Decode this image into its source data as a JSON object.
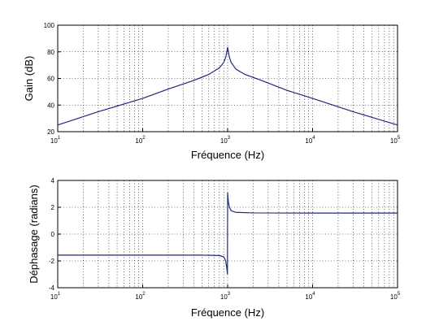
{
  "chart_data": [
    {
      "type": "line",
      "xscale": "log",
      "xlim": [
        10,
        100000
      ],
      "ylim": [
        20,
        100
      ],
      "xlabel": "Fréquence (Hz)",
      "ylabel": "Gain (dB)",
      "yticks": [
        "20",
        "40",
        "60",
        "80",
        "100"
      ],
      "xticks": [
        {
          "base": "10",
          "exp": "1"
        },
        {
          "base": "10",
          "exp": "2"
        },
        {
          "base": "10",
          "exp": "3"
        },
        {
          "base": "10",
          "exp": "4"
        },
        {
          "base": "10",
          "exp": "5"
        }
      ],
      "grid": true,
      "color": "#1f2a7a",
      "series": [
        {
          "x": [
            10,
            30,
            100,
            200,
            400,
            600,
            800,
            900,
            950,
            980,
            1000,
            1020,
            1050,
            1100,
            1250,
            1600,
            2500,
            5000,
            10000,
            30000,
            100000
          ],
          "y": [
            25,
            35,
            45,
            52,
            58.5,
            63,
            68,
            72,
            76,
            80,
            83.5,
            80,
            76,
            72,
            67,
            63,
            58.5,
            51,
            45,
            35,
            25
          ]
        }
      ]
    },
    {
      "type": "line",
      "xscale": "log",
      "xlim": [
        10,
        100000
      ],
      "ylim": [
        -4,
        4
      ],
      "xlabel": "Fréquence (Hz)",
      "ylabel": "Déphasage (radians)",
      "yticks": [
        "-4",
        "-2",
        "0",
        "2",
        "4"
      ],
      "xticks": [
        {
          "base": "10",
          "exp": "1"
        },
        {
          "base": "10",
          "exp": "2"
        },
        {
          "base": "10",
          "exp": "3"
        },
        {
          "base": "10",
          "exp": "4"
        },
        {
          "base": "10",
          "exp": "5"
        }
      ],
      "grid": true,
      "color": "#1f2a7a",
      "series": [
        {
          "x": [
            10,
            100,
            500,
            800,
            900,
            950,
            980,
            995,
            1000,
            1005,
            1020,
            1050,
            1100,
            1250,
            2000,
            10000,
            100000
          ],
          "y": [
            -1.57,
            -1.57,
            -1.57,
            -1.6,
            -1.7,
            -2.0,
            -2.6,
            -3.0,
            3.1,
            2.9,
            2.4,
            2.0,
            1.75,
            1.62,
            1.58,
            1.57,
            1.57
          ]
        }
      ]
    }
  ]
}
